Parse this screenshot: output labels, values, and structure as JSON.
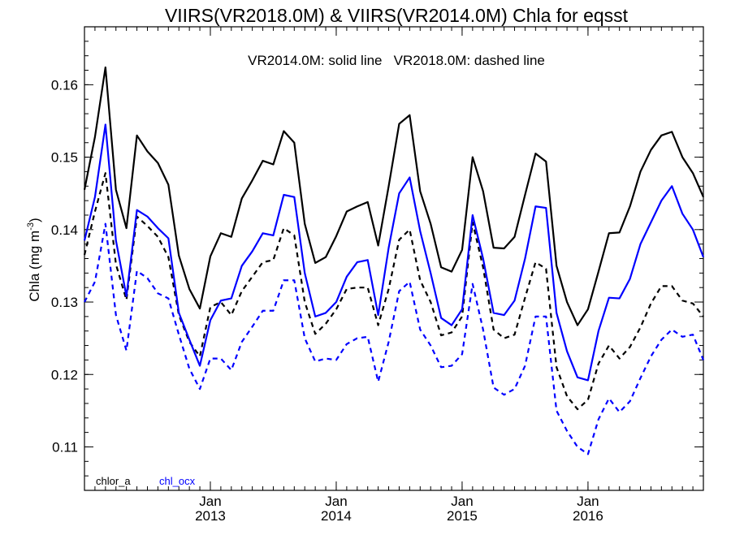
{
  "chart_data": {
    "type": "line",
    "title": "VIIRS(VR2018.0M) & VIIRS(VR2014.0M)  Chla for eqsst",
    "annotation": "VR2014.0M: solid line   VR2018.0M: dashed line",
    "ylabel": "Chla (mg m",
    "ylabel_exp": "-3",
    "ylabel_close": ")",
    "ylim": [
      0.104,
      0.168
    ],
    "yticks": [
      {
        "value": 0.11,
        "label": "0.11"
      },
      {
        "value": 0.12,
        "label": "0.12"
      },
      {
        "value": 0.13,
        "label": "0.13"
      },
      {
        "value": 0.14,
        "label": "0.14"
      },
      {
        "value": 0.15,
        "label": "0.15"
      },
      {
        "value": 0.16,
        "label": "0.16"
      }
    ],
    "xlim": [
      "2012-01",
      "2016-12"
    ],
    "xticks": [
      {
        "month": "2013-01",
        "line1": "Jan",
        "line2": "2013"
      },
      {
        "month": "2014-01",
        "line1": "Jan",
        "line2": "2014"
      },
      {
        "month": "2015-01",
        "line1": "Jan",
        "line2": "2015"
      },
      {
        "month": "2016-01",
        "line1": "Jan",
        "line2": "2016"
      }
    ],
    "grid": false,
    "legend": [
      {
        "label": "chlor_a",
        "color": "#000000"
      },
      {
        "label": "chl_ocx",
        "color": "#0000ff"
      }
    ],
    "months": [
      "2012-01",
      "2012-02",
      "2012-03",
      "2012-04",
      "2012-05",
      "2012-06",
      "2012-07",
      "2012-08",
      "2012-09",
      "2012-10",
      "2012-11",
      "2012-12",
      "2013-01",
      "2013-02",
      "2013-03",
      "2013-04",
      "2013-05",
      "2013-06",
      "2013-07",
      "2013-08",
      "2013-09",
      "2013-10",
      "2013-11",
      "2013-12",
      "2014-01",
      "2014-02",
      "2014-03",
      "2014-04",
      "2014-05",
      "2014-06",
      "2014-07",
      "2014-08",
      "2014-09",
      "2014-10",
      "2014-11",
      "2014-12",
      "2015-01",
      "2015-02",
      "2015-03",
      "2015-04",
      "2015-05",
      "2015-06",
      "2015-07",
      "2015-08",
      "2015-09",
      "2015-10",
      "2015-11",
      "2015-12",
      "2016-01",
      "2016-02",
      "2016-03",
      "2016-04",
      "2016-05",
      "2016-06",
      "2016-07",
      "2016-08",
      "2016-09",
      "2016-10",
      "2016-11",
      "2016-12"
    ],
    "series": [
      {
        "color": "#000000",
        "style": "solid",
        "values": [
          0.1455,
          0.1528,
          0.1624,
          0.1455,
          0.1402,
          0.153,
          0.1508,
          0.1492,
          0.1462,
          0.1364,
          0.1318,
          0.1291,
          0.1363,
          0.1395,
          0.139,
          0.1443,
          0.1468,
          0.1495,
          0.149,
          0.1536,
          0.152,
          0.1408,
          0.1354,
          0.1362,
          0.1391,
          0.1425,
          0.1432,
          0.1438,
          0.1378,
          0.146,
          0.1546,
          0.1558,
          0.1453,
          0.1408,
          0.1348,
          0.1342,
          0.1372,
          0.15,
          0.1453,
          0.1375,
          0.1374,
          0.139,
          0.1448,
          0.1505,
          0.1494,
          0.135,
          0.13,
          0.1268,
          0.129,
          0.1342,
          0.1395,
          0.1396,
          0.1432,
          0.148,
          0.151,
          0.153,
          0.1535,
          0.15,
          0.1478,
          0.1445
        ]
      },
      {
        "color": "#000000",
        "style": "dashed",
        "values": [
          0.1365,
          0.1425,
          0.1478,
          0.1352,
          0.1303,
          0.1418,
          0.1405,
          0.139,
          0.1362,
          0.1282,
          0.1245,
          0.1225,
          0.1293,
          0.13,
          0.1282,
          0.1315,
          0.1335,
          0.1355,
          0.1358,
          0.1402,
          0.1392,
          0.13,
          0.1256,
          0.127,
          0.129,
          0.1318,
          0.132,
          0.132,
          0.1268,
          0.1318,
          0.1386,
          0.14,
          0.133,
          0.13,
          0.1254,
          0.1258,
          0.128,
          0.141,
          0.1348,
          0.1262,
          0.125,
          0.1255,
          0.1306,
          0.1355,
          0.1346,
          0.121,
          0.117,
          0.1152,
          0.1165,
          0.1215,
          0.124,
          0.1222,
          0.1238,
          0.1265,
          0.1298,
          0.1322,
          0.1322,
          0.1302,
          0.1298,
          0.128
        ]
      },
      {
        "color": "#0000ff",
        "style": "solid",
        "values": [
          0.1385,
          0.1445,
          0.1545,
          0.1385,
          0.1308,
          0.1427,
          0.1418,
          0.1402,
          0.1388,
          0.1285,
          0.1248,
          0.1212,
          0.1275,
          0.1302,
          0.1305,
          0.135,
          0.137,
          0.1395,
          0.1392,
          0.1448,
          0.1445,
          0.134,
          0.128,
          0.1285,
          0.13,
          0.1335,
          0.1355,
          0.1358,
          0.1282,
          0.1375,
          0.145,
          0.1472,
          0.1398,
          0.134,
          0.1278,
          0.1268,
          0.129,
          0.142,
          0.136,
          0.1285,
          0.1282,
          0.1302,
          0.136,
          0.1432,
          0.143,
          0.1285,
          0.1232,
          0.1196,
          0.1192,
          0.126,
          0.1306,
          0.1305,
          0.1332,
          0.138,
          0.141,
          0.144,
          0.146,
          0.1422,
          0.14,
          0.1362
        ]
      },
      {
        "color": "#0000ff",
        "style": "dashed",
        "values": [
          0.13,
          0.1328,
          0.1408,
          0.1282,
          0.1233,
          0.1343,
          0.1333,
          0.1312,
          0.1305,
          0.1255,
          0.1208,
          0.118,
          0.1222,
          0.1222,
          0.1206,
          0.1245,
          0.1266,
          0.1288,
          0.1288,
          0.133,
          0.133,
          0.125,
          0.1218,
          0.1222,
          0.122,
          0.1242,
          0.125,
          0.1252,
          0.119,
          0.1245,
          0.1315,
          0.1328,
          0.1262,
          0.124,
          0.121,
          0.1212,
          0.1228,
          0.1325,
          0.1262,
          0.1182,
          0.1172,
          0.118,
          0.1212,
          0.128,
          0.128,
          0.115,
          0.1122,
          0.11,
          0.109,
          0.1138,
          0.1167,
          0.1148,
          0.1163,
          0.1195,
          0.1225,
          0.1248,
          0.1262,
          0.1252,
          0.1255,
          0.122
        ]
      }
    ]
  }
}
